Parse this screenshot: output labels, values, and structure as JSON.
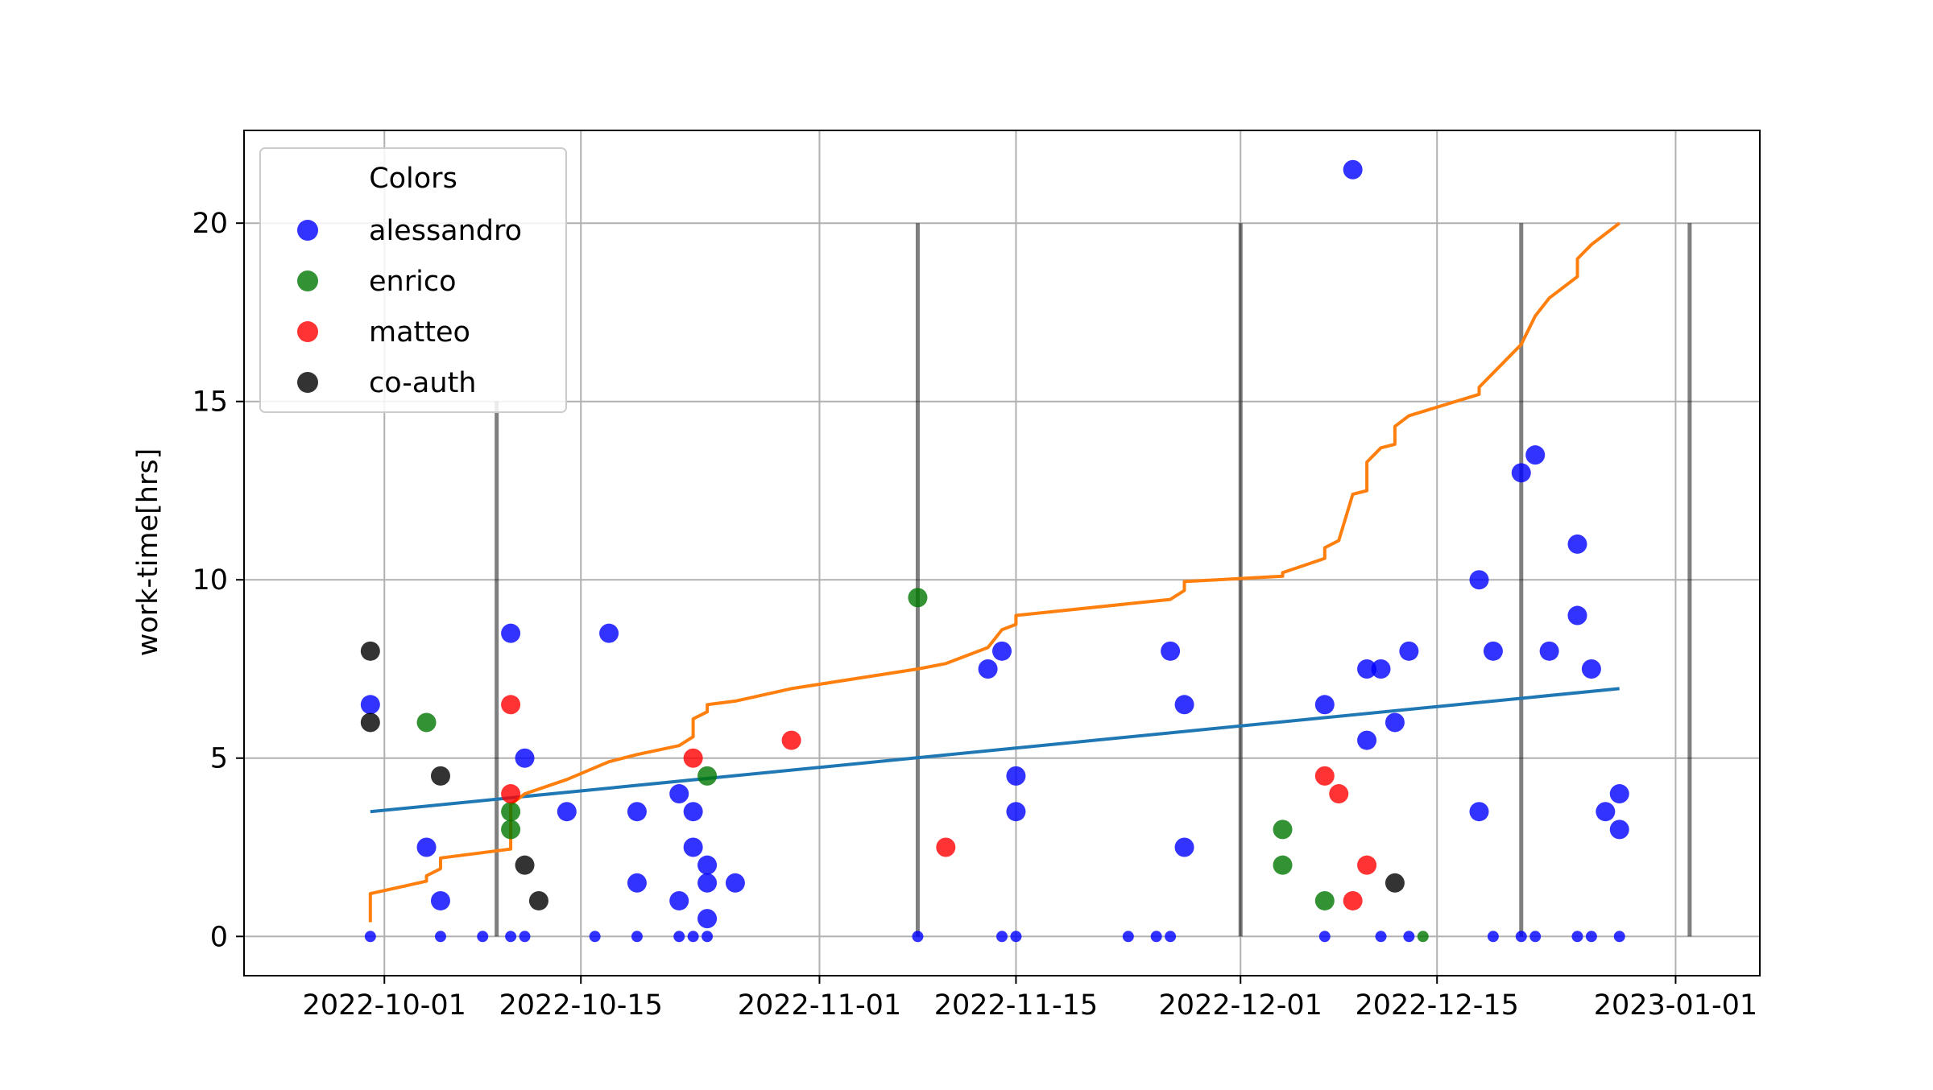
{
  "chart_data": {
    "type": "scatter",
    "title": "",
    "xlabel": "",
    "ylabel": "work-time[hrs]",
    "x_axis_type": "date",
    "xlim": [
      "2022-09-21",
      "2023-01-07"
    ],
    "ylim": [
      -1.1,
      22.6
    ],
    "grid": true,
    "legend": {
      "title": "Colors",
      "placement": "top-left",
      "entries": [
        "alessandro",
        "enrico",
        "matteo",
        "co-auth"
      ]
    },
    "x_ticks": [
      {
        "value": "2022-10-01",
        "label": "2022-10-01"
      },
      {
        "value": "2022-10-15",
        "label": "2022-10-15"
      },
      {
        "value": "2022-11-01",
        "label": "2022-11-01"
      },
      {
        "value": "2022-11-15",
        "label": "2022-11-15"
      },
      {
        "value": "2022-12-01",
        "label": "2022-12-01"
      },
      {
        "value": "2022-12-15",
        "label": "2022-12-15"
      },
      {
        "value": "2023-01-01",
        "label": "2023-01-01"
      }
    ],
    "y_ticks": [
      {
        "value": 0,
        "label": "0"
      },
      {
        "value": 5,
        "label": "5"
      },
      {
        "value": 10,
        "label": "10"
      },
      {
        "value": 15,
        "label": "15"
      },
      {
        "value": 20,
        "label": "20"
      }
    ],
    "vertical_markers": [
      {
        "x": "2022-10-09",
        "y_range": [
          0,
          15.0
        ]
      },
      {
        "x": "2022-11-08",
        "y_range": [
          0,
          20
        ]
      },
      {
        "x": "2022-12-01",
        "y_range": [
          0,
          20
        ]
      },
      {
        "x": "2022-12-21",
        "y_range": [
          0,
          20
        ]
      },
      {
        "x": "2023-01-02",
        "y_range": [
          0,
          20
        ]
      }
    ],
    "series": [
      {
        "name": "alessandro",
        "color": "#0000ff",
        "points": [
          [
            "2022-09-30",
            6.5
          ],
          [
            "2022-10-04",
            2.5
          ],
          [
            "2022-10-05",
            1.0
          ],
          [
            "2022-10-10",
            8.5
          ],
          [
            "2022-10-11",
            5.0
          ],
          [
            "2022-10-14",
            3.5
          ],
          [
            "2022-10-17",
            8.5
          ],
          [
            "2022-10-19",
            3.5
          ],
          [
            "2022-10-19",
            1.5
          ],
          [
            "2022-10-22",
            4.0
          ],
          [
            "2022-10-22",
            1.0
          ],
          [
            "2022-10-23",
            3.5
          ],
          [
            "2022-10-23",
            2.5
          ],
          [
            "2022-10-24",
            2.0
          ],
          [
            "2022-10-24",
            1.5
          ],
          [
            "2022-10-24",
            0.5
          ],
          [
            "2022-10-26",
            1.5
          ],
          [
            "2022-11-13",
            7.5
          ],
          [
            "2022-11-14",
            8.0
          ],
          [
            "2022-11-15",
            4.5
          ],
          [
            "2022-11-15",
            3.5
          ],
          [
            "2022-11-26",
            8.0
          ],
          [
            "2022-11-27",
            6.5
          ],
          [
            "2022-11-27",
            2.5
          ],
          [
            "2022-12-07",
            6.5
          ],
          [
            "2022-12-09",
            21.5
          ],
          [
            "2022-12-10",
            7.5
          ],
          [
            "2022-12-10",
            5.5
          ],
          [
            "2022-12-11",
            7.5
          ],
          [
            "2022-12-12",
            6.0
          ],
          [
            "2022-12-13",
            8.0
          ],
          [
            "2022-12-18",
            10.0
          ],
          [
            "2022-12-18",
            3.5
          ],
          [
            "2022-12-19",
            8.0
          ],
          [
            "2022-12-21",
            13.0
          ],
          [
            "2022-12-22",
            13.5
          ],
          [
            "2022-12-23",
            8.0
          ],
          [
            "2022-12-25",
            11.0
          ],
          [
            "2022-12-25",
            9.0
          ],
          [
            "2022-12-26",
            7.5
          ],
          [
            "2022-12-27",
            3.5
          ],
          [
            "2022-12-28",
            4.0
          ],
          [
            "2022-12-28",
            3.0
          ],
          [
            "2022-09-30",
            0
          ],
          [
            "2022-10-05",
            0
          ],
          [
            "2022-10-08",
            0
          ],
          [
            "2022-10-10",
            0
          ],
          [
            "2022-10-11",
            0
          ],
          [
            "2022-10-16",
            0
          ],
          [
            "2022-10-19",
            0
          ],
          [
            "2022-10-22",
            0
          ],
          [
            "2022-10-23",
            0
          ],
          [
            "2022-10-24",
            0
          ],
          [
            "2022-11-08",
            0
          ],
          [
            "2022-11-14",
            0
          ],
          [
            "2022-11-15",
            0
          ],
          [
            "2022-11-23",
            0
          ],
          [
            "2022-11-25",
            0
          ],
          [
            "2022-11-26",
            0
          ],
          [
            "2022-12-07",
            0
          ],
          [
            "2022-12-11",
            0
          ],
          [
            "2022-12-13",
            0
          ],
          [
            "2022-12-19",
            0
          ],
          [
            "2022-12-21",
            0
          ],
          [
            "2022-12-22",
            0
          ],
          [
            "2022-12-25",
            0
          ],
          [
            "2022-12-26",
            0
          ],
          [
            "2022-12-28",
            0
          ]
        ]
      },
      {
        "name": "enrico",
        "color": "#007700",
        "points": [
          [
            "2022-10-04",
            6.0
          ],
          [
            "2022-10-10",
            3.5
          ],
          [
            "2022-10-10",
            3.0
          ],
          [
            "2022-10-24",
            4.5
          ],
          [
            "2022-11-08",
            9.5
          ],
          [
            "2022-12-04",
            3.0
          ],
          [
            "2022-12-04",
            2.0
          ],
          [
            "2022-12-07",
            1.0
          ],
          [
            "2022-12-14",
            0
          ]
        ]
      },
      {
        "name": "matteo",
        "color": "#ff0000",
        "points": [
          [
            "2022-10-10",
            6.5
          ],
          [
            "2022-10-10",
            4.0
          ],
          [
            "2022-10-23",
            5.0
          ],
          [
            "2022-10-30",
            5.5
          ],
          [
            "2022-11-10",
            2.5
          ],
          [
            "2022-12-07",
            4.5
          ],
          [
            "2022-12-08",
            4.0
          ],
          [
            "2022-12-09",
            1.0
          ],
          [
            "2022-12-10",
            2.0
          ]
        ]
      },
      {
        "name": "co-auth",
        "color": "#000000",
        "points": [
          [
            "2022-09-30",
            8.0
          ],
          [
            "2022-09-30",
            6.0
          ],
          [
            "2022-10-05",
            4.5
          ],
          [
            "2022-10-11",
            2.0
          ],
          [
            "2022-10-12",
            1.0
          ],
          [
            "2022-12-12",
            1.5
          ]
        ]
      }
    ],
    "lines": [
      {
        "color": "#1f77b4",
        "kind": "trend",
        "points": [
          [
            "2022-09-30",
            3.5
          ],
          [
            "2022-12-28",
            6.95
          ]
        ]
      },
      {
        "color": "#ff7f0e",
        "kind": "cumulative",
        "points": [
          [
            "2022-09-30",
            0.4
          ],
          [
            "2022-09-30",
            1.2
          ],
          [
            "2022-10-04",
            1.55
          ],
          [
            "2022-10-04",
            1.7
          ],
          [
            "2022-10-05",
            1.9
          ],
          [
            "2022-10-05",
            2.2
          ],
          [
            "2022-10-10",
            2.45
          ],
          [
            "2022-10-10",
            3.2
          ],
          [
            "2022-10-10",
            3.7
          ],
          [
            "2022-10-11",
            4.0
          ],
          [
            "2022-10-14",
            4.4
          ],
          [
            "2022-10-17",
            4.9
          ],
          [
            "2022-10-19",
            5.1
          ],
          [
            "2022-10-22",
            5.35
          ],
          [
            "2022-10-23",
            5.6
          ],
          [
            "2022-10-23",
            6.1
          ],
          [
            "2022-10-24",
            6.3
          ],
          [
            "2022-10-24",
            6.5
          ],
          [
            "2022-10-26",
            6.6
          ],
          [
            "2022-10-30",
            6.95
          ],
          [
            "2022-11-08",
            7.5
          ],
          [
            "2022-11-10",
            7.65
          ],
          [
            "2022-11-13",
            8.1
          ],
          [
            "2022-11-14",
            8.6
          ],
          [
            "2022-11-15",
            8.75
          ],
          [
            "2022-11-15",
            9.0
          ],
          [
            "2022-11-26",
            9.45
          ],
          [
            "2022-11-27",
            9.7
          ],
          [
            "2022-11-27",
            9.95
          ],
          [
            "2022-12-04",
            10.1
          ],
          [
            "2022-12-04",
            10.2
          ],
          [
            "2022-12-07",
            10.6
          ],
          [
            "2022-12-07",
            10.9
          ],
          [
            "2022-12-08",
            11.1
          ],
          [
            "2022-12-09",
            12.4
          ],
          [
            "2022-12-10",
            12.5
          ],
          [
            "2022-12-10",
            13.3
          ],
          [
            "2022-12-11",
            13.7
          ],
          [
            "2022-12-12",
            13.8
          ],
          [
            "2022-12-12",
            14.3
          ],
          [
            "2022-12-13",
            14.6
          ],
          [
            "2022-12-18",
            15.2
          ],
          [
            "2022-12-18",
            15.4
          ],
          [
            "2022-12-19",
            15.8
          ],
          [
            "2022-12-21",
            16.6
          ],
          [
            "2022-12-22",
            17.4
          ],
          [
            "2022-12-23",
            17.9
          ],
          [
            "2022-12-25",
            18.5
          ],
          [
            "2022-12-25",
            19.0
          ],
          [
            "2022-12-26",
            19.4
          ],
          [
            "2022-12-27",
            19.7
          ],
          [
            "2022-12-28",
            20.0
          ]
        ]
      }
    ]
  }
}
